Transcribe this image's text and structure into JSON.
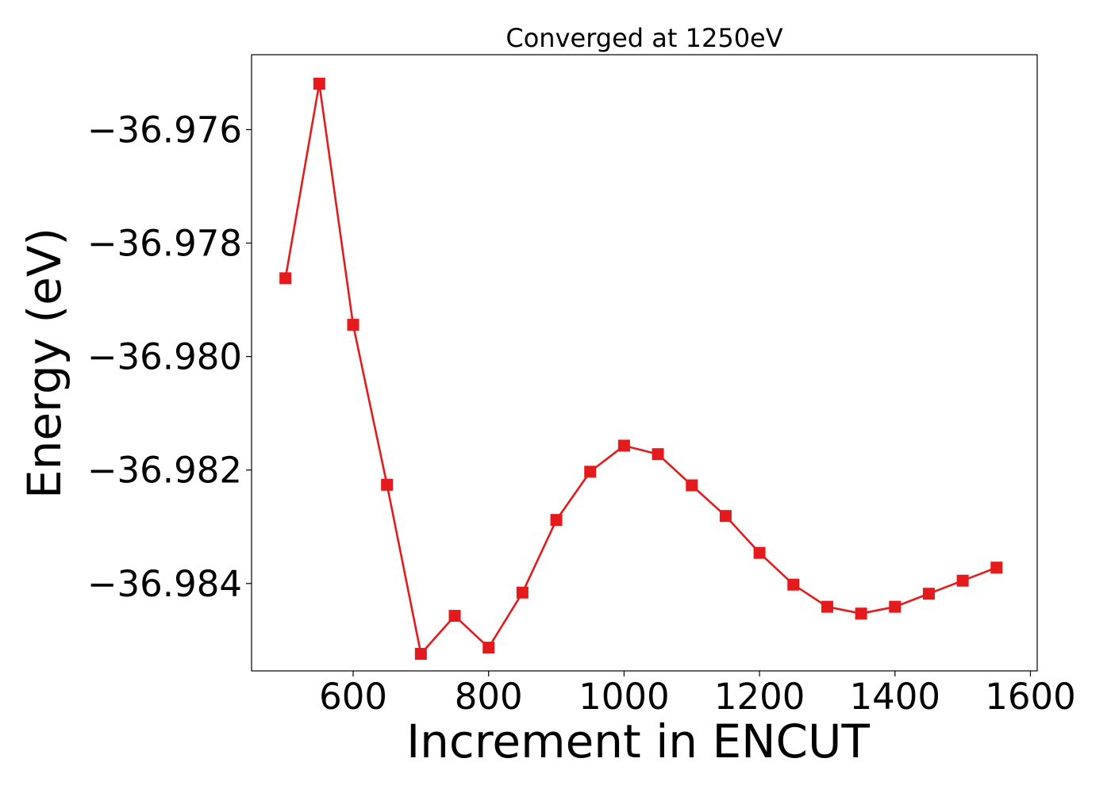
{
  "chart_data": {
    "type": "line",
    "title": "Converged at 1250eV",
    "xlabel": "Increment in ENCUT",
    "ylabel": "Energy (eV)",
    "xlim": [
      450,
      1610
    ],
    "ylim": [
      -36.98554,
      -36.97468
    ],
    "xticks": [
      {
        "value": 600,
        "label": "600"
      },
      {
        "value": 800,
        "label": "800"
      },
      {
        "value": 1000,
        "label": "1000"
      },
      {
        "value": 1200,
        "label": "1200"
      },
      {
        "value": 1400,
        "label": "1400"
      },
      {
        "value": 1600,
        "label": "1600"
      }
    ],
    "yticks": [
      {
        "value": -36.976,
        "label": "−36.976"
      },
      {
        "value": -36.978,
        "label": "−36.978"
      },
      {
        "value": -36.98,
        "label": "−36.980"
      },
      {
        "value": -36.982,
        "label": "−36.982"
      },
      {
        "value": -36.984,
        "label": "−36.984"
      }
    ],
    "grid": false,
    "series": [
      {
        "color": "#e41a1c",
        "marker": "square",
        "x": [
          500,
          550,
          600,
          650,
          700,
          750,
          800,
          850,
          900,
          950,
          1000,
          1050,
          1100,
          1150,
          1200,
          1250,
          1300,
          1350,
          1400,
          1450,
          1500,
          1550
        ],
        "y": [
          -36.97862,
          -36.97519,
          -36.97944,
          -36.98226,
          -36.98524,
          -36.98457,
          -36.98513,
          -36.98416,
          -36.98288,
          -36.98203,
          -36.98157,
          -36.98172,
          -36.98227,
          -36.98281,
          -36.98346,
          -36.98402,
          -36.98441,
          -36.98453,
          -36.98441,
          -36.98418,
          -36.98395,
          -36.98372
        ]
      }
    ]
  }
}
